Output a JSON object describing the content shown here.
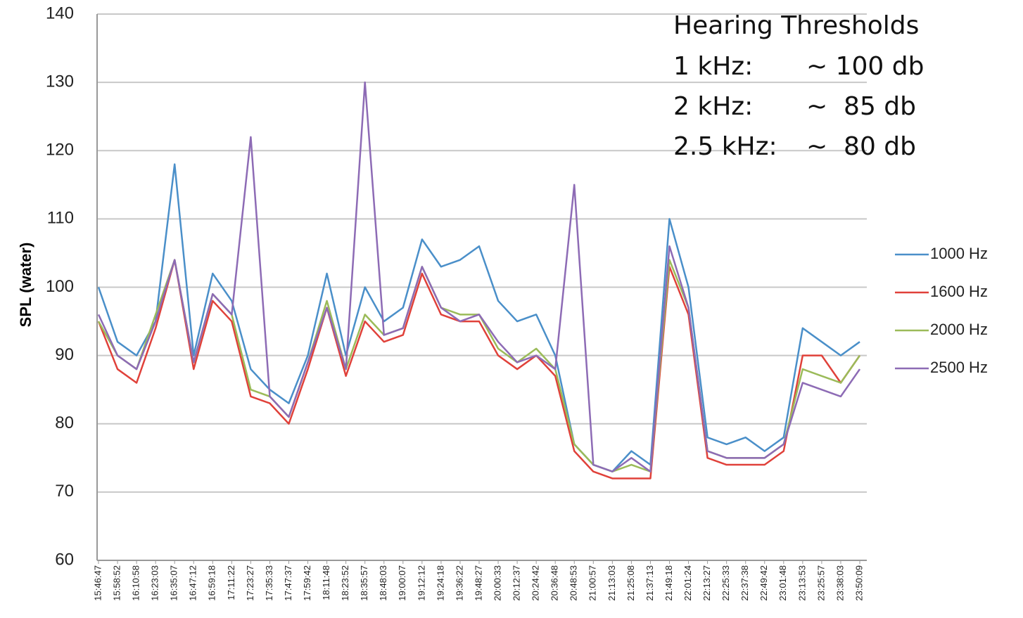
{
  "chart_data": {
    "type": "line",
    "y_label": "SPL (water)",
    "annotation": {
      "title": "Hearing Thresholds",
      "rows": [
        {
          "label": "1 kHz:",
          "text": "~ 100 db"
        },
        {
          "label": "2 kHz:",
          "text": "~  85 db"
        },
        {
          "label": "2.5 kHz:",
          "text": "~  80 db"
        }
      ]
    },
    "categories": [
      "15:46:47",
      "15:58:52",
      "16:10:58",
      "16:23:03",
      "16:35:07",
      "16:47:12",
      "16:59:18",
      "17:11:22",
      "17:23:27",
      "17:35:33",
      "17:47:37",
      "17:59:42",
      "18:11:48",
      "18:23:52",
      "18:35:57",
      "18:48:03",
      "19:00:07",
      "19:12:12",
      "19:24:18",
      "19:36:22",
      "19:48:27",
      "20:00:33",
      "20:12:37",
      "20:24:42",
      "20:36:48",
      "20:48:53",
      "21:00:57",
      "21:13:03",
      "21:25:08",
      "21:37:13",
      "21:49:18",
      "22:01:24",
      "22:13:27",
      "22:25:33",
      "22:37:38",
      "22:49:42",
      "23:01:48",
      "23:13:53",
      "23:25:57",
      "23:38:03",
      "23:50:09"
    ],
    "series": [
      {
        "name": "1000 Hz",
        "color": "#4a8fc9",
        "values": [
          100,
          92,
          90,
          95,
          118,
          90,
          102,
          98,
          88,
          85,
          83,
          90,
          102,
          90,
          100,
          95,
          97,
          107,
          103,
          104,
          106,
          98,
          95,
          96,
          90,
          77,
          74,
          73,
          76,
          74,
          110,
          100,
          78,
          77,
          78,
          76,
          78,
          94,
          92,
          90,
          92
        ]
      },
      {
        "name": "1600 Hz",
        "color": "#e0413a",
        "values": [
          95,
          88,
          86,
          94,
          104,
          88,
          98,
          95,
          84,
          83,
          80,
          88,
          97,
          87,
          95,
          92,
          93,
          102,
          96,
          95,
          95,
          90,
          88,
          90,
          87,
          76,
          73,
          72,
          72,
          72,
          103,
          96,
          75,
          74,
          74,
          74,
          76,
          90,
          90,
          86,
          90
        ]
      },
      {
        "name": "2000 Hz",
        "color": "#9bbb59",
        "values": [
          95,
          90,
          88,
          96,
          104,
          89,
          99,
          96,
          85,
          84,
          81,
          89,
          98,
          88,
          96,
          93,
          94,
          103,
          97,
          96,
          96,
          91,
          89,
          91,
          88,
          77,
          74,
          73,
          74,
          73,
          104,
          97,
          76,
          75,
          75,
          75,
          77,
          88,
          87,
          86,
          90
        ]
      },
      {
        "name": "2500 Hz",
        "color": "#8d6bb5",
        "values": [
          96,
          90,
          88,
          95,
          104,
          89,
          99,
          96,
          122,
          84,
          81,
          89,
          97,
          88,
          130,
          93,
          94,
          103,
          97,
          95,
          96,
          92,
          89,
          90,
          88,
          115,
          74,
          73,
          75,
          73,
          106,
          97,
          76,
          75,
          75,
          75,
          77,
          86,
          85,
          84,
          88
        ]
      }
    ],
    "ylim": [
      60,
      140
    ],
    "yticks": [
      60,
      70,
      80,
      90,
      100,
      110,
      120,
      130,
      140
    ],
    "grid": true,
    "legend": "right"
  }
}
